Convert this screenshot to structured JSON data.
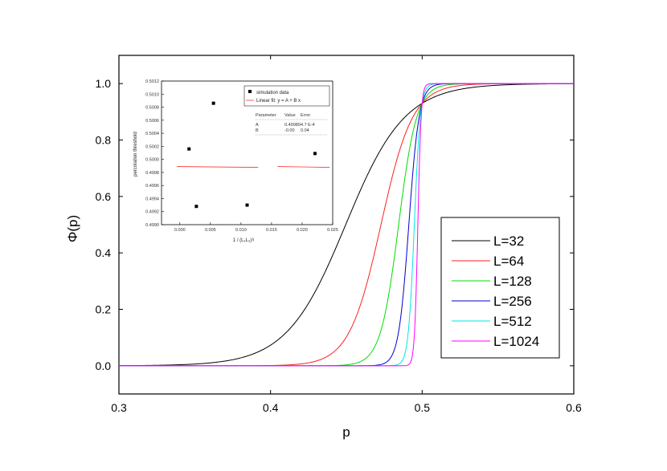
{
  "chart_data": [
    {
      "type": "line",
      "title": "",
      "xlabel": "p",
      "ylabel": "Φ(p)",
      "xlim": [
        0.3,
        0.6
      ],
      "ylim": [
        -0.1,
        1.1
      ],
      "xticks": [
        0.3,
        0.4,
        0.5,
        0.6
      ],
      "yticks": [
        0.0,
        0.2,
        0.4,
        0.6,
        0.8,
        1.0
      ],
      "xtick_labels": [
        "0.3",
        "0.4",
        "0.5",
        "0.6"
      ],
      "ytick_labels": [
        "0.0",
        "0.2",
        "0.4",
        "0.6",
        "0.8",
        "1.0"
      ],
      "legend_position": "bottom-right",
      "series": [
        {
          "name": "L=32",
          "color": "#000000",
          "crossing_point": [
            0.5,
            0.93
          ],
          "width_parameter": 0.0195
        },
        {
          "name": "L=64",
          "color": "#ff2020",
          "crossing_point": [
            0.5,
            0.93
          ],
          "width_parameter": 0.0105
        },
        {
          "name": "L=128",
          "color": "#00dd00",
          "crossing_point": [
            0.5,
            0.93
          ],
          "width_parameter": 0.006
        },
        {
          "name": "L=256",
          "color": "#0000cc",
          "crossing_point": [
            0.5,
            0.93
          ],
          "width_parameter": 0.0034
        },
        {
          "name": "L=512",
          "color": "#00e5e5",
          "crossing_point": [
            0.5,
            0.93
          ],
          "width_parameter": 0.002
        },
        {
          "name": "L=1024",
          "color": "#ff00ff",
          "crossing_point": [
            0.5,
            0.93
          ],
          "width_parameter": 0.0011
        }
      ]
    },
    {
      "type": "scatter",
      "title": "",
      "xlabel": "1 / (L₁L₂)¹ʲ",
      "ylabel": "percolation threshold",
      "xlim": [
        -0.003,
        0.025
      ],
      "ylim": [
        0.499,
        0.5012
      ],
      "xtick_labels": [
        "0.000",
        "0.005",
        "0.010",
        "0.015",
        "0.020",
        "0.025"
      ],
      "ytick_labels": [
        "0.4990",
        "0.4992",
        "0.4994",
        "0.4996",
        "0.4998",
        "0.5000",
        "0.5002",
        "0.5004",
        "0.5006",
        "0.5008",
        "0.5010",
        "0.5012"
      ],
      "points": [
        {
          "x": 0.0015,
          "y": 0.50016
        },
        {
          "x": 0.0027,
          "y": 0.49928
        },
        {
          "x": 0.0055,
          "y": 0.50086
        },
        {
          "x": 0.011,
          "y": 0.4993
        },
        {
          "x": 0.0221,
          "y": 0.50009
        }
      ],
      "fit": {
        "label": "Linear fit: y = A + B x",
        "A": 0.49989,
        "B": -0.0
      },
      "legend": {
        "points_label": "simulation data",
        "fit_label": "Linear fit: y = A + B x"
      },
      "fit_table": {
        "header": [
          "Parameter",
          "Value",
          "Error"
        ],
        "rows": [
          [
            "A",
            "0.49989",
            "4.7 E-4"
          ],
          [
            "B",
            "-0.00",
            "0.04"
          ]
        ]
      }
    }
  ],
  "colors": {
    "fit_line": "#ff3030",
    "frame": "#000000"
  }
}
